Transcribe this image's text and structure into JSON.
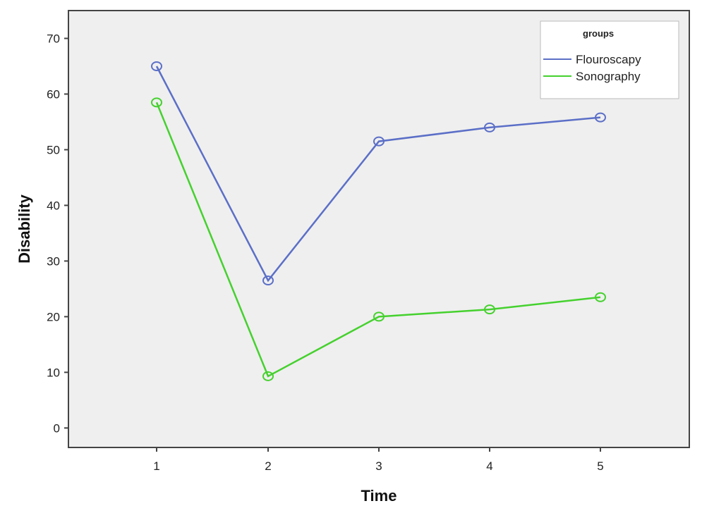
{
  "chart_data": {
    "type": "line",
    "xlabel": "Time",
    "ylabel": "Disability",
    "x": [
      1,
      2,
      3,
      4,
      5
    ],
    "xtick_labels": [
      "1",
      "2",
      "3",
      "4",
      "5"
    ],
    "yticks": [
      0,
      10,
      20,
      30,
      40,
      50,
      60,
      70
    ],
    "ytick_labels": [
      "0",
      "10",
      "20",
      "30",
      "40",
      "50",
      "60",
      "70"
    ],
    "ylim": [
      -3.5,
      75
    ],
    "grid": false,
    "legend": {
      "title": "groups",
      "placement": "top-right"
    },
    "series": [
      {
        "name": "Flouroscapy",
        "color": "#5b6fc7",
        "values": [
          65,
          26.5,
          51.5,
          54,
          55.8
        ]
      },
      {
        "name": "Sonography",
        "color": "#45d12e",
        "values": [
          58.5,
          9.3,
          20,
          21.3,
          23.5
        ]
      }
    ],
    "colors": {
      "plot_background": "#efefef",
      "frame": "#444444"
    }
  }
}
